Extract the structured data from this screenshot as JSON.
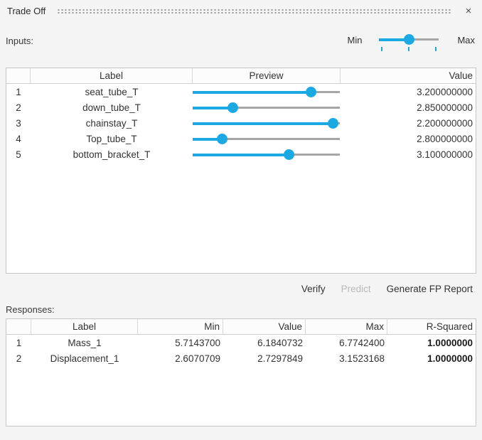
{
  "titlebar": {
    "title": "Trade Off",
    "close_icon": "×"
  },
  "inputs": {
    "label": "Inputs:",
    "range_slider": {
      "min_label": "Min",
      "max_label": "Max",
      "pct": 50
    }
  },
  "inputs_table": {
    "headers": {
      "index": "",
      "label": "Label",
      "preview": "Preview",
      "value": "Value"
    },
    "rows": [
      {
        "index": "1",
        "label": "seat_tube_T",
        "slider_pct": 80,
        "value": "3.200000000"
      },
      {
        "index": "2",
        "label": "down_tube_T",
        "slider_pct": 27,
        "value": "2.850000000"
      },
      {
        "index": "3",
        "label": "chainstay_T",
        "slider_pct": 95,
        "value": "2.200000000"
      },
      {
        "index": "4",
        "label": "Top_tube_T",
        "slider_pct": 20,
        "value": "2.800000000"
      },
      {
        "index": "5",
        "label": "bottom_bracket_T",
        "slider_pct": 65,
        "value": "3.100000000"
      }
    ]
  },
  "actions": {
    "verify": "Verify",
    "predict": "Predict",
    "generate_fp_report": "Generate FP Report"
  },
  "responses": {
    "label": "Responses:",
    "headers": {
      "index": "",
      "label": "Label",
      "min": "Min",
      "value": "Value",
      "max": "Max",
      "r_squared": "R-Squared"
    },
    "rows": [
      {
        "index": "1",
        "label": "Mass_1",
        "min": "5.7143700",
        "value": "6.1840732",
        "max": "6.7742400",
        "r_squared": "1.0000000"
      },
      {
        "index": "2",
        "label": "Displacement_1",
        "min": "2.6070709",
        "value": "2.7297849",
        "max": "3.1523168",
        "r_squared": "1.0000000"
      }
    ]
  },
  "colors": {
    "accent_blue": "#1ba9e4",
    "track_gray": "#a6a6a6",
    "panel_background": "#f5f4f4",
    "table_border": "#c6c6c6",
    "disabled_text": "#b9b9b9"
  }
}
